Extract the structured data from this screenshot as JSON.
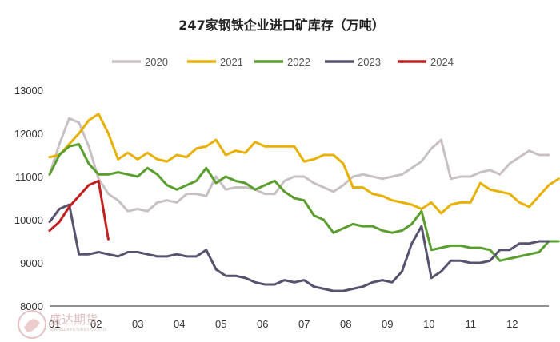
{
  "chart_data": {
    "type": "line",
    "title": "247家钢铁企业进口矿库存（万吨）",
    "xlabel": "",
    "ylabel": "",
    "ylim": [
      8000,
      13000
    ],
    "yticks": [
      "8000",
      "9000",
      "10000",
      "11000",
      "12000",
      "13000"
    ],
    "xticks": [
      "01",
      "02",
      "03",
      "04",
      "05",
      "06",
      "07",
      "08",
      "09",
      "10",
      "11",
      "12"
    ],
    "x_domain": [
      1,
      52
    ],
    "grid": false,
    "legend_position": "top",
    "series": [
      {
        "name": "2020",
        "color": "#c9c0c3",
        "values": [
          11050,
          11750,
          12350,
          12250,
          11700,
          10950,
          10600,
          10450,
          10200,
          10250,
          10200,
          10400,
          10450,
          10400,
          10600,
          10600,
          10550,
          11000,
          10700,
          10750,
          10750,
          10700,
          10600,
          10600,
          10900,
          11000,
          11000,
          10850,
          10750,
          10650,
          10800,
          11000,
          11050,
          11000,
          10950,
          11000,
          11050,
          11200,
          11350,
          11650,
          11850,
          10950,
          11000,
          11000,
          11100,
          11150,
          11050,
          11300,
          11450,
          11600,
          11500,
          11500
        ]
      },
      {
        "name": "2021",
        "color": "#e8b000",
        "values": [
          11450,
          11500,
          11750,
          12000,
          12300,
          12450,
          12000,
          11400,
          11550,
          11400,
          11550,
          11400,
          11350,
          11500,
          11450,
          11650,
          11700,
          11850,
          11500,
          11600,
          11550,
          11800,
          11700,
          11700,
          11700,
          11700,
          11350,
          11400,
          11500,
          11500,
          11300,
          10750,
          10750,
          10600,
          10550,
          10450,
          10400,
          10350,
          10250,
          10400,
          10150,
          10350,
          10400,
          10400,
          10850,
          10700,
          10650,
          10600,
          10400,
          10300,
          10550,
          10800,
          10950
        ]
      },
      {
        "name": "2022",
        "color": "#5a9e2e",
        "values": [
          11050,
          11500,
          11700,
          11750,
          11300,
          11050,
          11050,
          11100,
          11050,
          11000,
          11200,
          11050,
          10800,
          10700,
          10800,
          10900,
          11200,
          10850,
          11000,
          10900,
          10850,
          10700,
          10800,
          10900,
          10650,
          10500,
          10450,
          10100,
          10000,
          9700,
          9800,
          9900,
          9850,
          9850,
          9750,
          9700,
          9750,
          9900,
          10200,
          9300,
          9350,
          9400,
          9400,
          9350,
          9350,
          9300,
          9050,
          9100,
          9150,
          9200,
          9250,
          9500,
          9500
        ]
      },
      {
        "name": "2023",
        "color": "#55536e",
        "values": [
          9950,
          10250,
          10350,
          9200,
          9200,
          9250,
          9200,
          9150,
          9250,
          9250,
          9200,
          9150,
          9150,
          9200,
          9150,
          9150,
          9300,
          8850,
          8700,
          8700,
          8650,
          8550,
          8500,
          8500,
          8600,
          8550,
          8600,
          8450,
          8400,
          8350,
          8350,
          8400,
          8450,
          8550,
          8600,
          8550,
          8800,
          9450,
          9850,
          8650,
          8800,
          9050,
          9050,
          9000,
          9000,
          9050,
          9300,
          9300,
          9450,
          9450,
          9500,
          9500
        ]
      },
      {
        "name": "2024",
        "color": "#c0201e",
        "values": [
          9750,
          9950,
          10300,
          10550,
          10800,
          10900,
          9550
        ]
      }
    ]
  },
  "watermark": {
    "brand": "盛达期货",
    "sub": "SHENGDA FUTURES CO.,LTD."
  }
}
